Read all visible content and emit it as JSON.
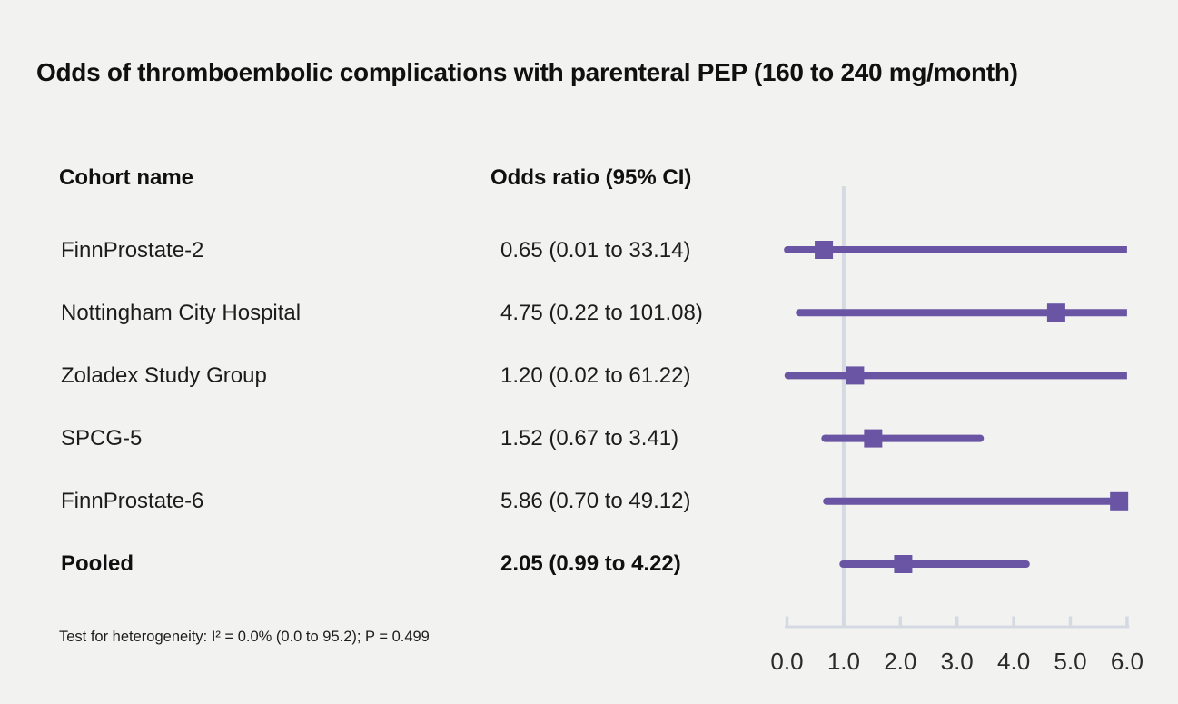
{
  "title": "Odds of thromboembolic complications with parenteral PEP (160 to 240 mg/month)",
  "table": {
    "cohort_header": "Cohort name",
    "or_header": "Odds ratio (95% CI)"
  },
  "footnote": "Test for heterogeneity: I² = 0.0% (0.0 to 95.2); P = 0.499",
  "colors": {
    "background": "#f2f2f1",
    "marker": "#6a55a4",
    "axis": "#d5dae2",
    "tick_label": "#2b2b2b"
  },
  "chart_data": {
    "type": "forest",
    "title": "Odds of thromboembolic complications with parenteral PEP (160 to 240 mg/month)",
    "xlabel": "Odds ratio",
    "x_min": 0.0,
    "x_max": 6.0,
    "tick_values": [
      0,
      1,
      2,
      3,
      4,
      5,
      6
    ],
    "ticks": [
      "0.0",
      "1.0",
      "2.0",
      "3.0",
      "4.0",
      "5.0",
      "6.0"
    ],
    "reference_line": 1.0,
    "grid": false,
    "points": [
      {
        "name": "FinnProstate-2",
        "label": "0.65 (0.01 to 33.14)",
        "estimate": 0.65,
        "lower": 0.01,
        "upper": 33.14,
        "bold": false
      },
      {
        "name": "Nottingham City Hospital",
        "label": "4.75 (0.22 to 101.08)",
        "estimate": 4.75,
        "lower": 0.22,
        "upper": 101.08,
        "bold": false
      },
      {
        "name": "Zoladex Study Group",
        "label": "1.20 (0.02 to 61.22)",
        "estimate": 1.2,
        "lower": 0.02,
        "upper": 61.22,
        "bold": false
      },
      {
        "name": "SPCG-5",
        "label": "1.52 (0.67 to 3.41)",
        "estimate": 1.52,
        "lower": 0.67,
        "upper": 3.41,
        "bold": false
      },
      {
        "name": "FinnProstate-6",
        "label": "5.86 (0.70 to 49.12)",
        "estimate": 5.86,
        "lower": 0.7,
        "upper": 49.12,
        "bold": false
      },
      {
        "name": "Pooled",
        "label": "2.05 (0.99 to 4.22)",
        "estimate": 2.05,
        "lower": 0.99,
        "upper": 4.22,
        "bold": true
      }
    ]
  }
}
